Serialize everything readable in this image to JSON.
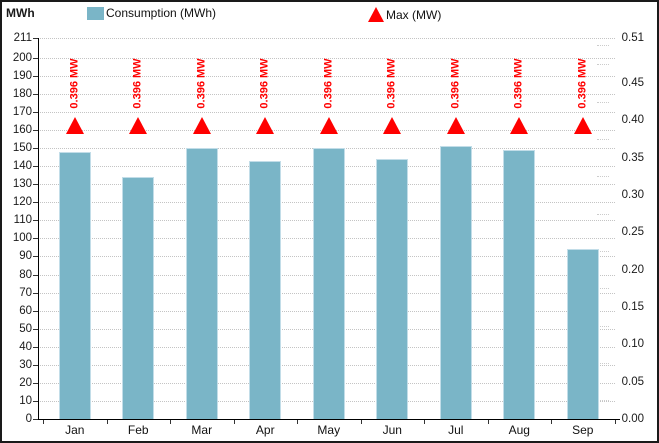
{
  "colors": {
    "bar_fill": "#7ab5c7",
    "bar_border": "#c2dde8",
    "max_red": "#ff0000",
    "gridline": "#c4c4c4",
    "axis_line": "#000000",
    "text": "#1a1a1a",
    "frame_border": "#1a1a1a",
    "background": "#ffffff"
  },
  "legend": {
    "consumption": "Consumption (MWh)",
    "max": "Max (MW)"
  },
  "chart_data": {
    "type": "bar",
    "title": "",
    "categories": [
      "Jan",
      "Feb",
      "Mar",
      "Apr",
      "May",
      "Jun",
      "Jul",
      "Aug",
      "Sep"
    ],
    "series": [
      {
        "name": "Consumption (MWh)",
        "type": "bar",
        "axis": "left",
        "color": "#7ab5c7",
        "values": [
          148,
          134,
          150,
          143,
          150,
          144,
          151,
          149,
          94
        ]
      },
      {
        "name": "Max (MW)",
        "type": "point",
        "marker": "triangle-up",
        "axis": "right",
        "color": "#ff0000",
        "values": [
          0.396,
          0.396,
          0.396,
          0.396,
          0.396,
          0.396,
          0.396,
          0.396,
          0.396
        ],
        "point_labels": [
          "0.396 MW",
          "0.396 MW",
          "0.396 MW",
          "0.396 MW",
          "0.396 MW",
          "0.396 MW",
          "0.396 MW",
          "0.396 MW",
          "0.396 MW"
        ]
      }
    ],
    "left_axis": {
      "title": "MWh",
      "min": 0,
      "max": 211,
      "tick_values": [
        211,
        200,
        190,
        180,
        170,
        160,
        150,
        140,
        130,
        120,
        110,
        100,
        90,
        80,
        70,
        60,
        50,
        40,
        30,
        20,
        10,
        0
      ],
      "tick_labels": [
        "211",
        "200",
        "190",
        "180",
        "170",
        "160",
        "150",
        "140",
        "130",
        "120",
        "110",
        "100",
        "90",
        "80",
        "70",
        "60",
        "50",
        "40",
        "30",
        "20",
        "10",
        "0"
      ]
    },
    "right_axis": {
      "min": 0,
      "max": 0.51,
      "tick_values": [
        0.51,
        0.45,
        0.4,
        0.35,
        0.3,
        0.25,
        0.2,
        0.15,
        0.1,
        0.05,
        0
      ],
      "tick_labels": [
        "0.51",
        "0.45",
        "0.40",
        "0.35",
        "0.30",
        "0.25",
        "0.20",
        "0.15",
        "0.10",
        "0.05",
        "0.00"
      ],
      "minor_tick_values": [
        0.5,
        0.475,
        0.425,
        0.375,
        0.325,
        0.275,
        0.225,
        0.175,
        0.125,
        0.075,
        0.025
      ]
    },
    "grid": true,
    "legend_position": "top"
  }
}
